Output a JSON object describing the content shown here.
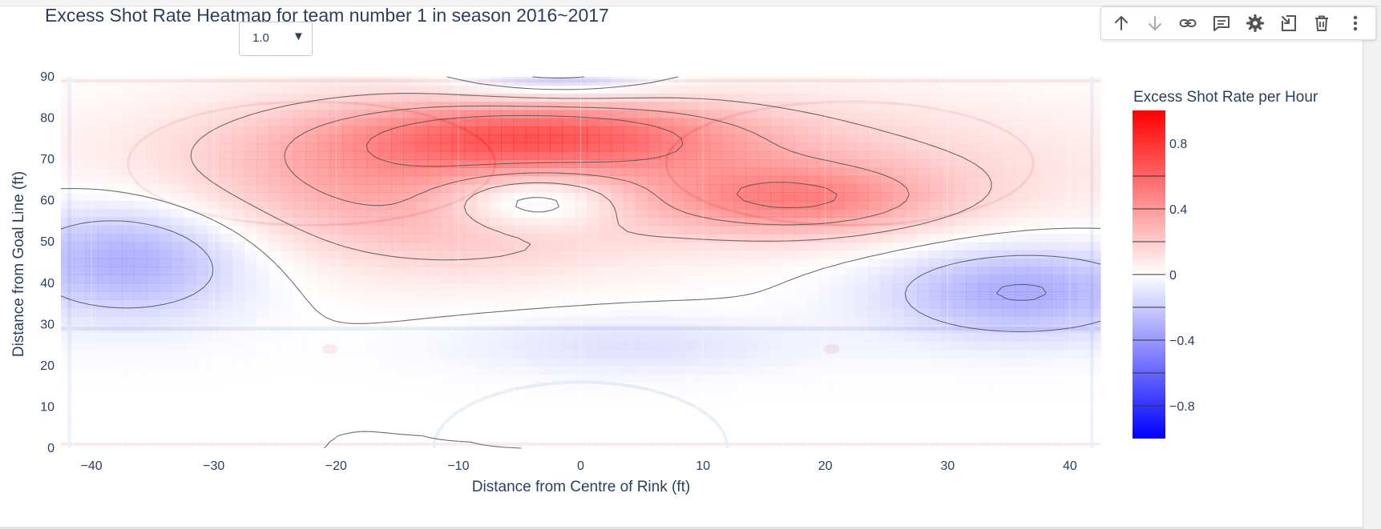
{
  "dropdown": {
    "value": "1.0",
    "arrow": "▼"
  },
  "toolbar": {
    "buttons": [
      "arrow-up-icon",
      "arrow-down-icon",
      "link-icon",
      "comment-icon",
      "gear-icon",
      "export-icon",
      "trash-icon",
      "more-vert-icon"
    ]
  },
  "chart_data": {
    "type": "heatmap",
    "title": "Excess Shot Rate Heatmap for team number 1 in season 2016~2017",
    "xlabel": "Distance from Centre of Rink (ft)",
    "ylabel": "Distance from Goal Line (ft)",
    "xlim": [
      -42.5,
      42.5
    ],
    "ylim": [
      0,
      90
    ],
    "xticks": [
      -40,
      -30,
      -20,
      -10,
      0,
      10,
      20,
      30,
      40
    ],
    "xtick_labels": [
      "−40",
      "−30",
      "−20",
      "−10",
      "0",
      "10",
      "20",
      "30",
      "40"
    ],
    "yticks": [
      0,
      10,
      20,
      30,
      40,
      50,
      60,
      70,
      80,
      90
    ],
    "ytick_labels": [
      "0",
      "10",
      "20",
      "30",
      "40",
      "50",
      "60",
      "70",
      "80",
      "90"
    ],
    "colorbar": {
      "title": "Excess Shot Rate per Hour",
      "range": [
        -1,
        1
      ],
      "ticks": [
        0.8,
        0.4,
        0,
        -0.4,
        -0.8
      ],
      "tick_labels": [
        "0.8",
        "0.4",
        "0",
        "−0.4",
        "−0.8"
      ],
      "colorscale": [
        "#0000ff",
        "#ffffff",
        "#ff0000"
      ]
    },
    "contour_levels": [
      -0.4,
      -0.2,
      0,
      0.2,
      0.4,
      0.6
    ],
    "field_components": [
      {
        "x": -3,
        "y": 76,
        "sx": 11,
        "sy": 6,
        "amp": 0.55
      },
      {
        "x": 18,
        "y": 60,
        "sx": 8,
        "sy": 6,
        "amp": 0.42
      },
      {
        "x": 3,
        "y": 68,
        "sx": 26,
        "sy": 12,
        "amp": 0.32
      },
      {
        "x": -18,
        "y": 65,
        "sx": 10,
        "sy": 13,
        "amp": 0.22
      },
      {
        "x": -8,
        "y": 50,
        "sx": 9,
        "sy": 8,
        "amp": 0.12
      },
      {
        "x": -4,
        "y": 60,
        "sx": 5,
        "sy": 5,
        "amp": -0.42
      },
      {
        "x": -37,
        "y": 46,
        "sx": 7,
        "sy": 10,
        "amp": -0.42
      },
      {
        "x": 36,
        "y": 38,
        "sx": 8,
        "sy": 8,
        "amp": -0.42
      },
      {
        "x": 4,
        "y": 25,
        "sx": 10,
        "sy": 5,
        "amp": -0.15
      },
      {
        "x": -2,
        "y": 92,
        "sx": 6,
        "sy": 5,
        "amp": -0.35
      }
    ]
  }
}
